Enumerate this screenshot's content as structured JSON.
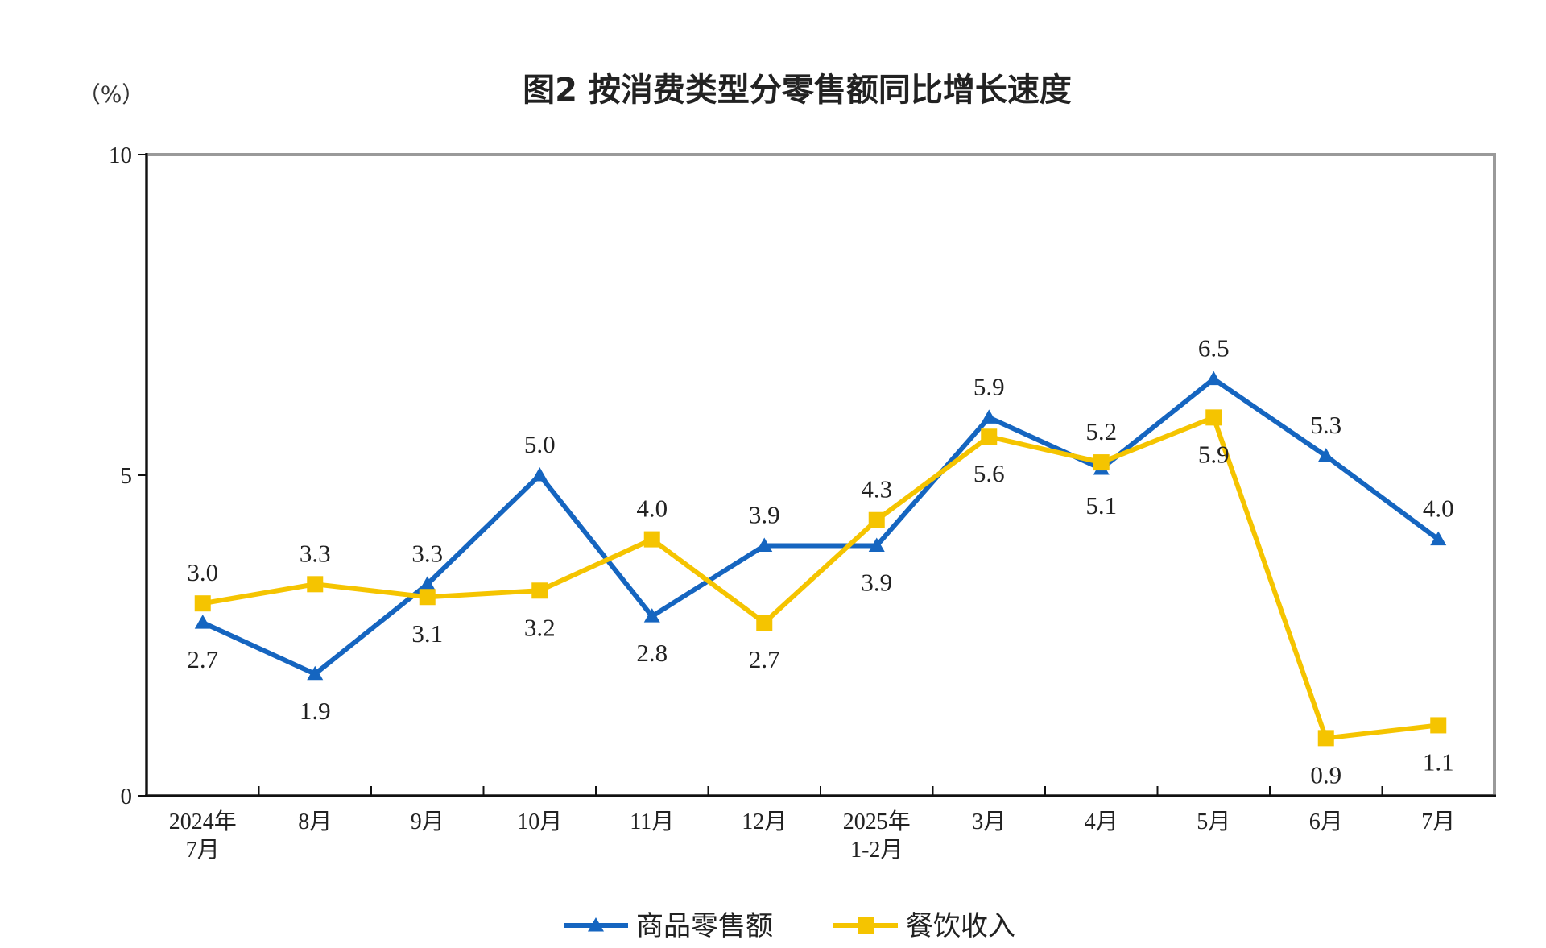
{
  "chart_data": {
    "type": "line",
    "title": "图2  按消费类型分零售额同比增长速度",
    "unit_label": "（%）",
    "ylim": [
      0,
      10
    ],
    "y_ticks": [
      "0",
      "5",
      "10"
    ],
    "grid": false,
    "legend_position": "bottom-center",
    "categories": [
      [
        "2024年",
        "7月"
      ],
      [
        "8月"
      ],
      [
        "9月"
      ],
      [
        "10月"
      ],
      [
        "11月"
      ],
      [
        "12月"
      ],
      [
        "2025年",
        "1-2月"
      ],
      [
        "3月"
      ],
      [
        "4月"
      ],
      [
        "5月"
      ],
      [
        "6月"
      ],
      [
        "7月"
      ]
    ],
    "series": [
      {
        "name": "商品零售额",
        "color": "#1565C0",
        "marker": "triangle",
        "values": [
          2.7,
          1.9,
          3.3,
          5.0,
          2.8,
          3.9,
          3.9,
          5.9,
          5.1,
          6.5,
          5.3,
          4.0
        ],
        "labels": [
          "2.7",
          "1.9",
          "3.3",
          "5.0",
          "2.8",
          "3.9",
          "3.9",
          "5.9",
          "5.1",
          "6.5",
          "5.3",
          "4.0"
        ],
        "label_side": [
          "below",
          "below",
          "above",
          "above",
          "below",
          "above",
          "below",
          "above",
          "below",
          "above",
          "above",
          "above"
        ]
      },
      {
        "name": "餐饮收入",
        "color": "#F5C400",
        "marker": "square",
        "values": [
          3.0,
          3.3,
          3.1,
          3.2,
          4.0,
          2.7,
          4.3,
          5.6,
          5.2,
          5.9,
          0.9,
          1.1
        ],
        "labels": [
          "3.0",
          "3.3",
          "3.1",
          "3.2",
          "4.0",
          "2.7",
          "4.3",
          "5.6",
          "5.2",
          "5.9",
          "0.9",
          "1.1"
        ],
        "label_side": [
          "above",
          "above",
          "below",
          "below",
          "above",
          "below",
          "above",
          "below",
          "above",
          "below",
          "below",
          "below"
        ]
      }
    ]
  }
}
